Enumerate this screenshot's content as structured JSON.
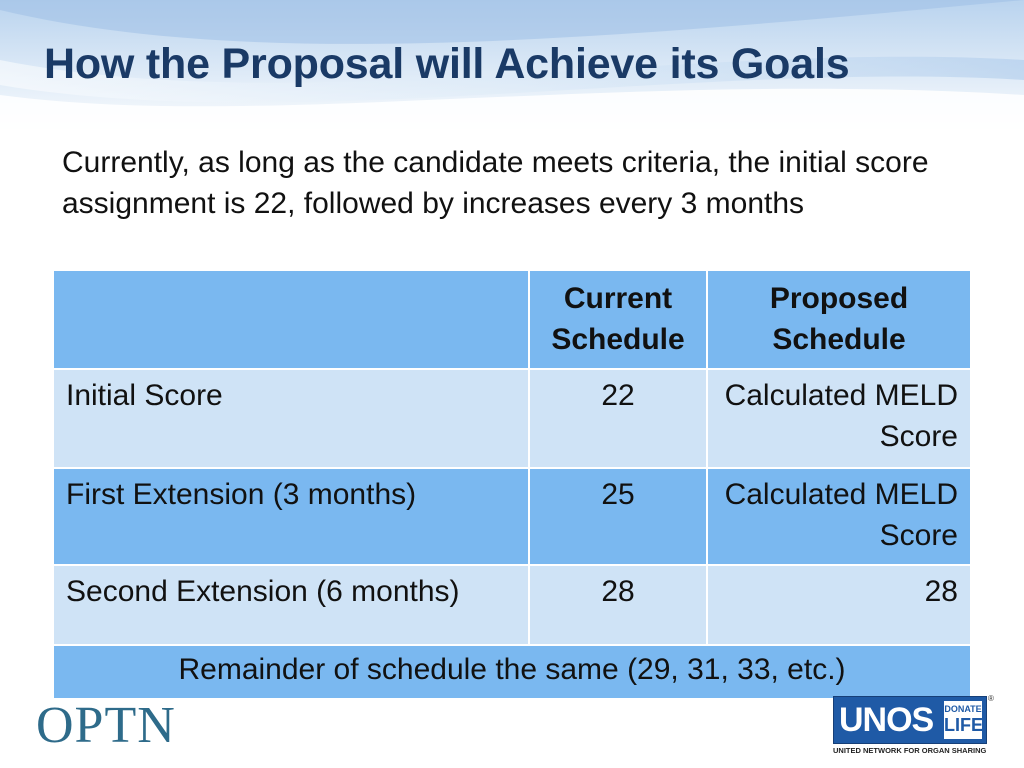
{
  "slide": {
    "title": "How the Proposal will Achieve its Goals",
    "intro": "Currently, as long as the candidate meets criteria, the initial score assignment is 22, followed by increases every 3 months"
  },
  "table": {
    "headers": [
      "",
      "Current Schedule",
      "Proposed Schedule"
    ],
    "rows": [
      {
        "label": "Initial Score",
        "current": "22",
        "proposed": "Calculated MELD Score"
      },
      {
        "label": "First Extension (3 months)",
        "current": "25",
        "proposed": "Calculated MELD Score"
      },
      {
        "label": "Second Extension (6 months)",
        "current": "28",
        "proposed": "28"
      }
    ],
    "footer": "Remainder of schedule the same (29, 31, 33, etc.)"
  },
  "logos": {
    "optn": "OPTN",
    "unos": "UNOS",
    "donate_life_top": "DONATE",
    "donate_life_bottom": "LIFE",
    "registered": "®",
    "unos_tagline": "UNITED NETWORK FOR ORGAN SHARING"
  },
  "colors": {
    "title": "#1a3a66",
    "table_dark": "#7ab8f0",
    "table_light": "#cfe3f6",
    "optn": "#2e6b8a",
    "unos_blue": "#1f5aa6"
  }
}
